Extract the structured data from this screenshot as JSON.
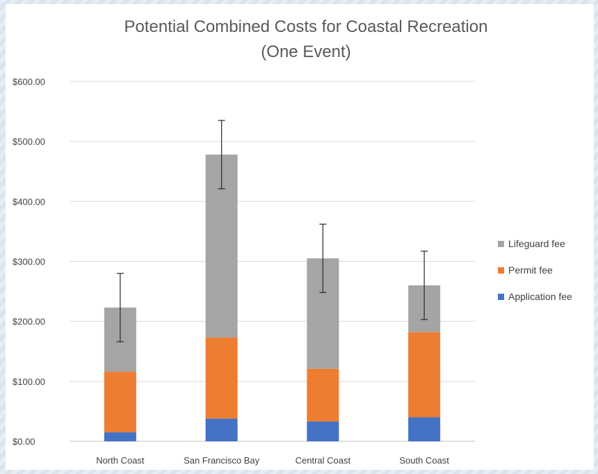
{
  "chart_data": {
    "type": "bar",
    "stacked": true,
    "title": "Potential Combined Costs for Coastal Recreation",
    "subtitle": "(One Event)",
    "xlabel": "",
    "ylabel": "",
    "categories": [
      "North Coast",
      "San Francisco Bay",
      "Central Coast",
      "South Coast"
    ],
    "series": [
      {
        "name": "Application fee",
        "color": "#4472c4",
        "values": [
          15,
          38,
          33,
          40
        ]
      },
      {
        "name": "Permit fee",
        "color": "#ed7d31",
        "values": [
          101,
          135,
          88,
          142
        ]
      },
      {
        "name": "Lifeguard fee",
        "color": "#a5a5a5",
        "values": [
          107,
          305,
          184,
          78
        ]
      }
    ],
    "error_bars": {
      "values": [
        57,
        57,
        57,
        57
      ]
    },
    "ylim": [
      0,
      600
    ],
    "y_ticks": [
      "$0.00",
      "$100.00",
      "$200.00",
      "$300.00",
      "$400.00",
      "$500.00",
      "$600.00"
    ],
    "grid": true,
    "legend_position": "right"
  }
}
